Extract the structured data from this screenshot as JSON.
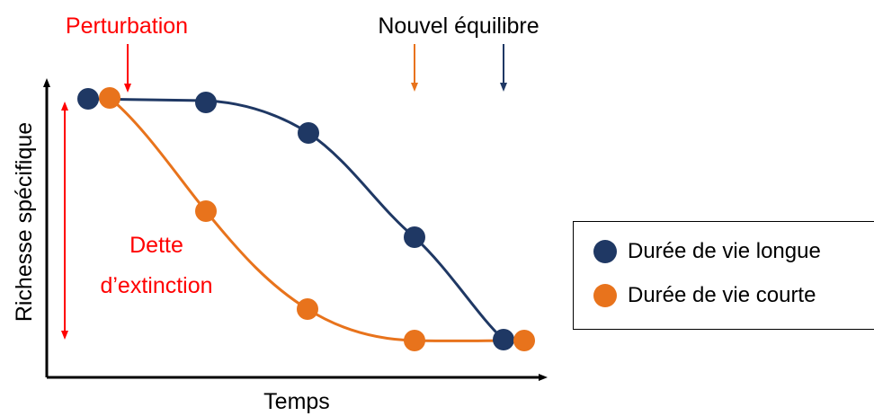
{
  "labels": {
    "perturbation": "Perturbation",
    "nouvel_equilibre": "Nouvel équilibre",
    "dette_line1": "Dette",
    "dette_line2": "d’extinction",
    "y_axis": "Richesse spécifique",
    "x_axis": "Temps"
  },
  "legend": {
    "long": "Durée de vie longue",
    "short": "Durée de vie courte"
  },
  "colors": {
    "long": "#1f3864",
    "short": "#e8731c",
    "highlight": "#ff0000",
    "axis": "#000000"
  },
  "series": [
    {
      "key": "long",
      "points": [
        0,
        1,
        2,
        3,
        4
      ]
    },
    {
      "key": "short",
      "points": [
        0,
        1,
        2,
        3,
        4
      ]
    }
  ]
}
